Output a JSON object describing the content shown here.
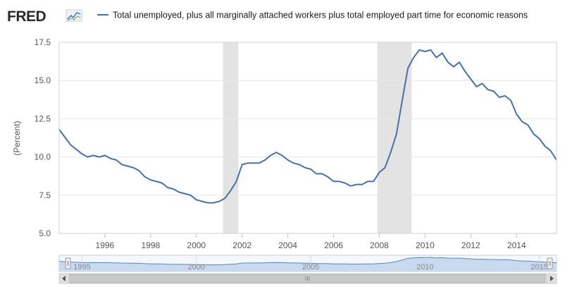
{
  "logo": {
    "text": "FRED",
    "icon": "fred-chart-icon"
  },
  "colors": {
    "series": "#4572a7",
    "recession": "#e3e3e3",
    "grid": "#e6e6e6",
    "navigator_fill": "#c9d9ee",
    "navigator_line": "#5a86c0",
    "navigator_mask": "#dce7f5"
  },
  "chart_data": {
    "type": "line",
    "title": "",
    "legend": "Total unemployed, plus all marginally attached workers plus total employed part time for economic reasons",
    "legend_position": "top",
    "ylabel": "(Percent)",
    "xlabel": "",
    "xlim": [
      "1994-01-01",
      "2015-10-01"
    ],
    "ylim": [
      5.0,
      17.5
    ],
    "y_ticks": [
      "5.0",
      "7.5",
      "10.0",
      "12.5",
      "15.0",
      "17.5"
    ],
    "x_ticks": [
      "1996",
      "1998",
      "2000",
      "2002",
      "2004",
      "2006",
      "2008",
      "2010",
      "2012",
      "2014"
    ],
    "grid": true,
    "recessions": [
      [
        "2001-03-01",
        "2001-11-01"
      ],
      [
        "2007-12-01",
        "2009-06-01"
      ]
    ],
    "series": [
      {
        "name": "Total unemployed, plus all marginally attached workers plus total employed part time for economic reasons",
        "x": [
          "1994-01-01",
          "1994-04-01",
          "1994-07-01",
          "1994-10-01",
          "1995-01-01",
          "1995-04-01",
          "1995-07-01",
          "1995-10-01",
          "1996-01-01",
          "1996-04-01",
          "1996-07-01",
          "1996-10-01",
          "1997-01-01",
          "1997-04-01",
          "1997-07-01",
          "1997-10-01",
          "1998-01-01",
          "1998-04-01",
          "1998-07-01",
          "1998-10-01",
          "1999-01-01",
          "1999-04-01",
          "1999-07-01",
          "1999-10-01",
          "2000-01-01",
          "2000-04-01",
          "2000-07-01",
          "2000-10-01",
          "2001-01-01",
          "2001-04-01",
          "2001-07-01",
          "2001-10-01",
          "2002-01-01",
          "2002-04-01",
          "2002-07-01",
          "2002-10-01",
          "2003-01-01",
          "2003-04-01",
          "2003-07-01",
          "2003-10-01",
          "2004-01-01",
          "2004-04-01",
          "2004-07-01",
          "2004-10-01",
          "2005-01-01",
          "2005-04-01",
          "2005-07-01",
          "2005-10-01",
          "2006-01-01",
          "2006-04-01",
          "2006-07-01",
          "2006-10-01",
          "2007-01-01",
          "2007-04-01",
          "2007-07-01",
          "2007-10-01",
          "2008-01-01",
          "2008-04-01",
          "2008-07-01",
          "2008-10-01",
          "2009-01-01",
          "2009-04-01",
          "2009-07-01",
          "2009-10-01",
          "2010-01-01",
          "2010-04-01",
          "2010-07-01",
          "2010-10-01",
          "2011-01-01",
          "2011-04-01",
          "2011-07-01",
          "2011-10-01",
          "2012-01-01",
          "2012-04-01",
          "2012-07-01",
          "2012-10-01",
          "2013-01-01",
          "2013-04-01",
          "2013-07-01",
          "2013-10-01",
          "2014-01-01",
          "2014-04-01",
          "2014-07-01",
          "2014-10-01",
          "2015-01-01",
          "2015-04-01",
          "2015-07-01",
          "2015-09-01",
          "2015-10-01"
        ],
        "values": [
          11.8,
          11.3,
          10.8,
          10.5,
          10.2,
          10.0,
          10.1,
          10.0,
          10.1,
          9.9,
          9.8,
          9.5,
          9.4,
          9.3,
          9.1,
          8.7,
          8.5,
          8.4,
          8.3,
          8.0,
          7.9,
          7.7,
          7.6,
          7.5,
          7.2,
          7.1,
          7.0,
          7.0,
          7.1,
          7.3,
          7.8,
          8.4,
          9.5,
          9.6,
          9.6,
          9.6,
          9.8,
          10.1,
          10.3,
          10.1,
          9.8,
          9.6,
          9.5,
          9.3,
          9.2,
          8.9,
          8.9,
          8.7,
          8.4,
          8.4,
          8.3,
          8.1,
          8.2,
          8.2,
          8.4,
          8.4,
          9.0,
          9.3,
          10.3,
          11.5,
          13.7,
          15.8,
          16.5,
          17.0,
          16.9,
          17.0,
          16.5,
          16.8,
          16.2,
          15.9,
          16.2,
          15.6,
          15.1,
          14.6,
          14.8,
          14.4,
          14.3,
          13.9,
          14.0,
          13.7,
          12.8,
          12.3,
          12.1,
          11.5,
          11.2,
          10.7,
          10.4,
          10.0,
          9.8
        ]
      }
    ],
    "navigator_ticks": [
      "1995",
      "2000",
      "2005",
      "2010",
      "2015"
    ]
  }
}
